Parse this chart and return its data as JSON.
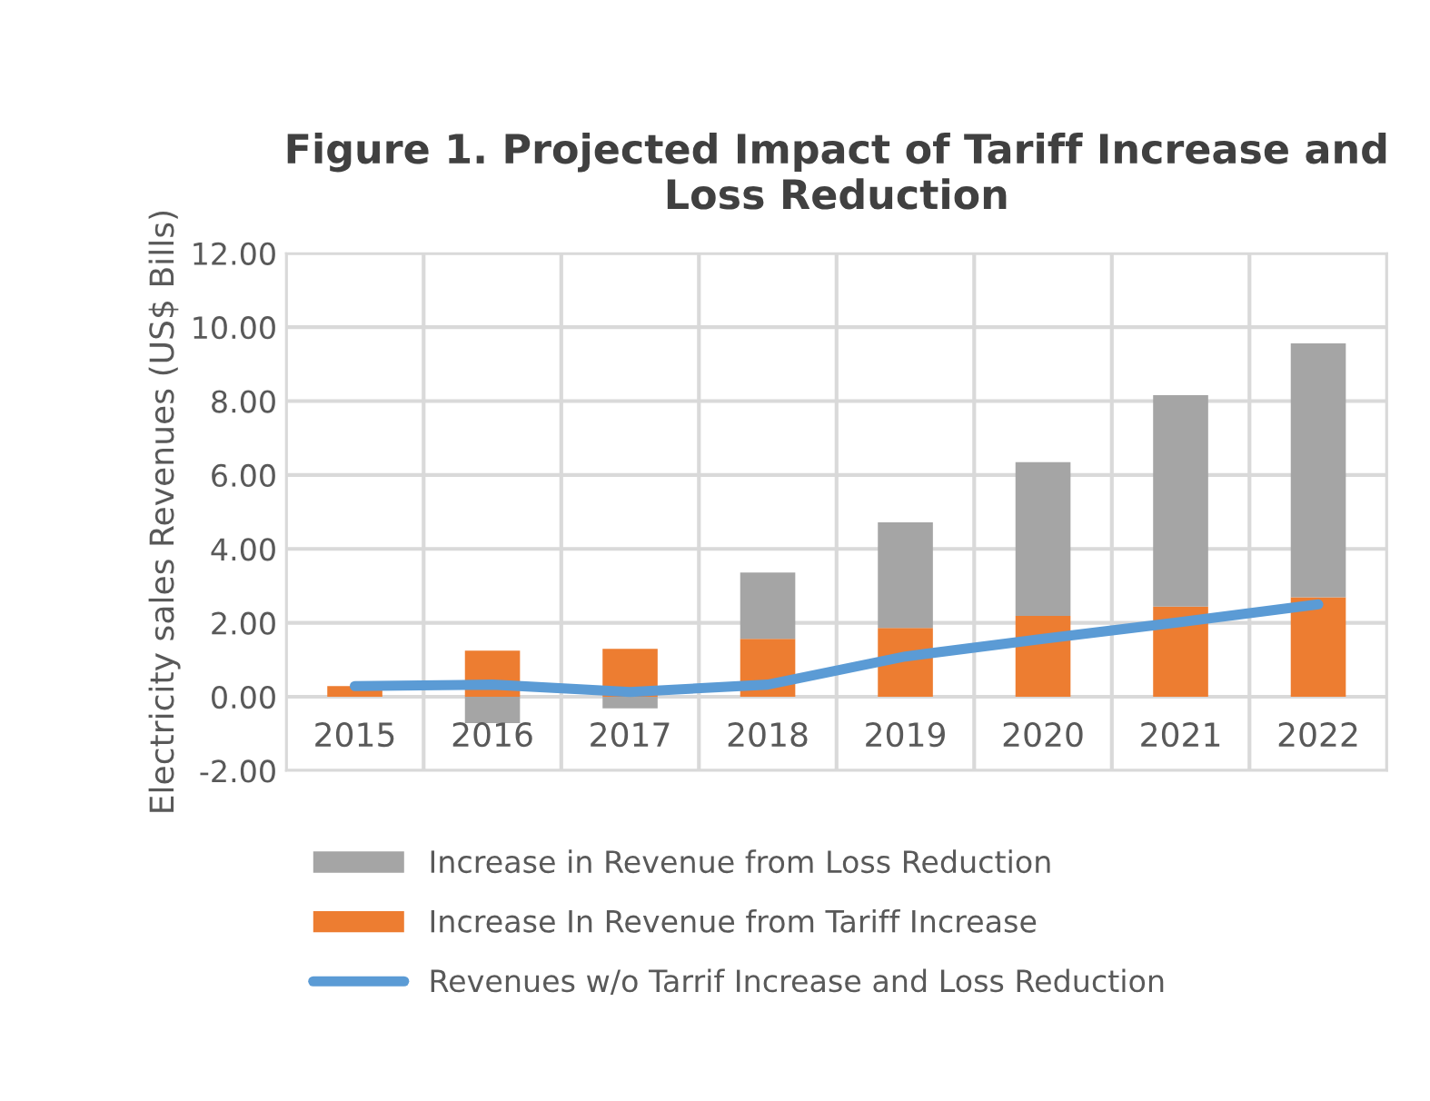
{
  "chart_data": {
    "type": "bar",
    "stacked": true,
    "title": "Figure 1. Projected Impact of Tariff Increase and Loss Reduction",
    "ylabel": "Electricity sales Revenues (US$ Bills)",
    "categories": [
      "2015",
      "2016",
      "2017",
      "2018",
      "2019",
      "2020",
      "2021",
      "2022"
    ],
    "series": [
      {
        "name": "Increase In Revenue from Tariff Increase",
        "color": "#ed7d31",
        "values": [
          0.29,
          1.25,
          1.3,
          1.57,
          1.86,
          2.19,
          2.44,
          2.69
        ]
      },
      {
        "name": "Increase in Revenue from Loss Reduction",
        "color": "#a5a5a5",
        "values": [
          null,
          -0.71,
          -0.31,
          1.79,
          2.86,
          4.16,
          5.72,
          6.87
        ]
      },
      {
        "name": "Revenues w/o Tarrif Increase and Loss Reduction",
        "type": "line",
        "color": "#5b9bd5",
        "values": [
          0.29,
          0.33,
          0.13,
          0.33,
          1.09,
          1.57,
          2.02,
          2.5
        ]
      }
    ],
    "ylim": [
      -2,
      12
    ],
    "yticks": [
      {
        "value": -2,
        "label": "-2.00"
      },
      {
        "value": 0,
        "label": "0.00"
      },
      {
        "value": 2,
        "label": "2.00"
      },
      {
        "value": 4,
        "label": "4.00"
      },
      {
        "value": 6,
        "label": "6.00"
      },
      {
        "value": 8,
        "label": "8.00"
      },
      {
        "value": 10,
        "label": "10.00"
      },
      {
        "value": 12,
        "label": "12.00"
      }
    ],
    "grid": true,
    "legend": "bottom"
  }
}
